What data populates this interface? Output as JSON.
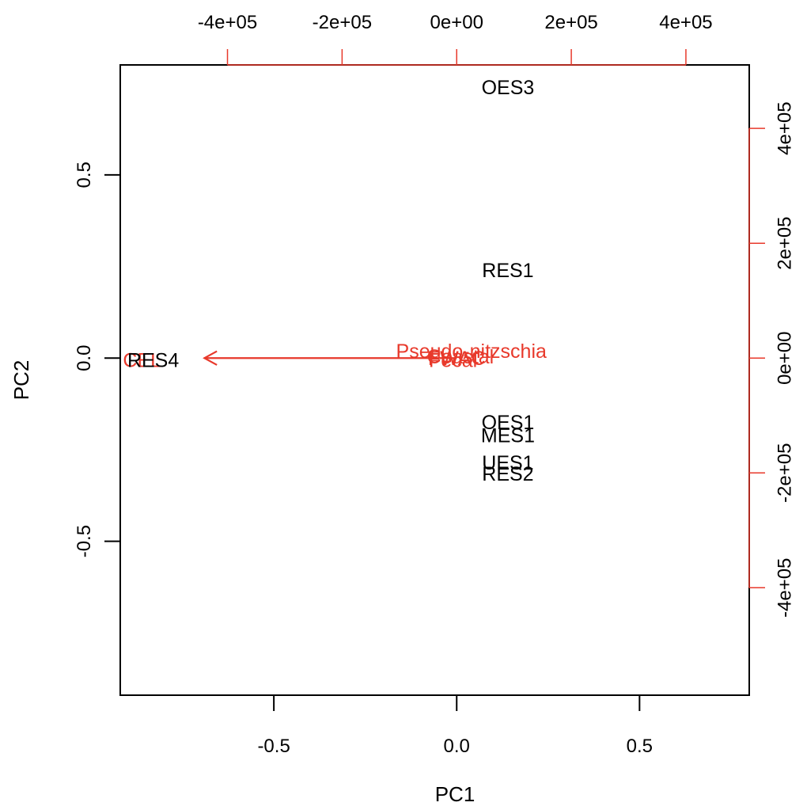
{
  "chart_data": {
    "type": "scatter",
    "subtype": "biplot",
    "title": "",
    "xlabel": "PC1",
    "ylabel": "PC2",
    "xlim": [
      -0.92,
      0.8
    ],
    "ylim": [
      -0.92,
      0.8
    ],
    "x_ticks": [
      -0.5,
      0.0,
      0.5
    ],
    "y_ticks": [
      -0.5,
      0.0,
      0.5
    ],
    "x_tick_labels": [
      "-0.5",
      "0.0",
      "0.5"
    ],
    "y_tick_labels": [
      "-0.5",
      "0.0",
      "0.5"
    ],
    "top_axis": {
      "ticks": [
        -400000,
        -200000,
        0,
        200000,
        400000
      ],
      "tick_labels": [
        "-4e+05",
        "-2e+05",
        "0e+00",
        "2e+05",
        "4e+05"
      ],
      "color": "#e8392b"
    },
    "right_axis": {
      "ticks": [
        -400000,
        -200000,
        0,
        200000,
        400000
      ],
      "tick_labels": [
        "-4e+05",
        "-2e+05",
        "0e+00",
        "2e+05",
        "4e+05"
      ],
      "color": "#e8392b"
    },
    "grid": false,
    "points": [
      {
        "label": "OES3",
        "x": 0.14,
        "y": 0.74
      },
      {
        "label": "RES1",
        "x": 0.14,
        "y": 0.24
      },
      {
        "label": "OES1",
        "x": 0.14,
        "y": -0.175
      },
      {
        "label": "MES1",
        "x": 0.14,
        "y": -0.21
      },
      {
        "label": "UES1",
        "x": 0.14,
        "y": -0.285
      },
      {
        "label": "RES2",
        "x": 0.14,
        "y": -0.315
      },
      {
        "label": "RES4",
        "x": -0.83,
        "y": -0.005
      }
    ],
    "loadings": [
      {
        "label": "Pseudo-nitzschia",
        "x": -0.69,
        "y": 0.0,
        "label_x": 0.04,
        "label_y": 0.02
      },
      {
        "label": "FWAC",
        "x": -0.002,
        "y": 0.0,
        "label_x": 0.0,
        "label_y": 0.0
      },
      {
        "label": "Fecal",
        "x": -0.002,
        "y": 0.0,
        "label_x": -0.01,
        "label_y": -0.005
      },
      {
        "label": "Coastal",
        "x": -0.002,
        "y": 0.0,
        "label_x": 0.01,
        "label_y": 0.005
      },
      {
        "label": "CEL",
        "x": -0.69,
        "y": 0.0,
        "label_x": -0.86,
        "label_y": -0.005
      }
    ],
    "point_color": "#000000",
    "loading_color": "#e8392b"
  }
}
